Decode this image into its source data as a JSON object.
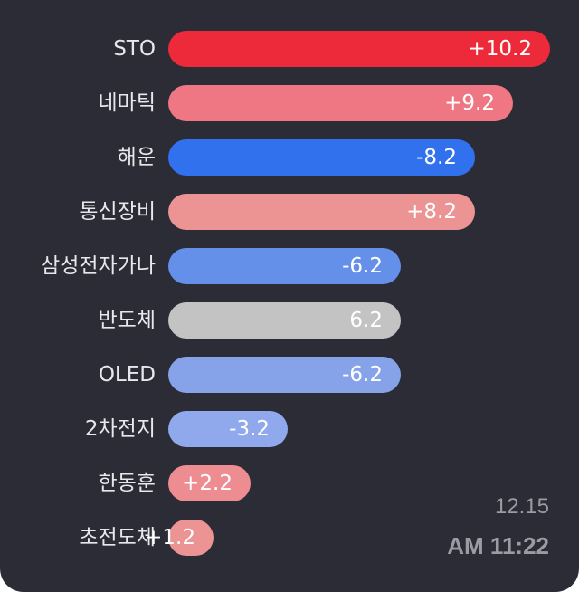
{
  "chart_data": {
    "type": "bar",
    "orientation": "horizontal",
    "categories": [
      "STO",
      "네마틱",
      "해운",
      "통신장비",
      "삼성전자가나",
      "반도체",
      "OLED",
      "2차전지",
      "한동훈",
      "초전도체"
    ],
    "values": [
      10.2,
      9.2,
      -8.2,
      8.2,
      -6.2,
      6.2,
      -6.2,
      -3.2,
      2.2,
      1.2
    ],
    "value_labels": [
      "+10.2",
      "+9.2",
      "-8.2",
      "+8.2",
      "-6.2",
      "6.2",
      "-6.2",
      "-3.2",
      "+2.2",
      "+1.2"
    ],
    "bar_colors": [
      "#ec2a3a",
      "#ef7683",
      "#3271ee",
      "#ec9494",
      "#6590ea",
      "#c3c3c3",
      "#86a3ea",
      "#90a9ec",
      "#ee8d91",
      "#ec9494"
    ],
    "bar_length": "absolute value",
    "xlim": [
      0,
      10.2
    ],
    "grid": false,
    "legend": "none"
  },
  "timestamp": {
    "date": "12.15",
    "time": "AM 11:22"
  },
  "colors": {
    "background": "#2b2c35",
    "label_text": "#e8e8ec",
    "value_text": "#ffffff",
    "timestamp_text": "#9b9ba3"
  }
}
